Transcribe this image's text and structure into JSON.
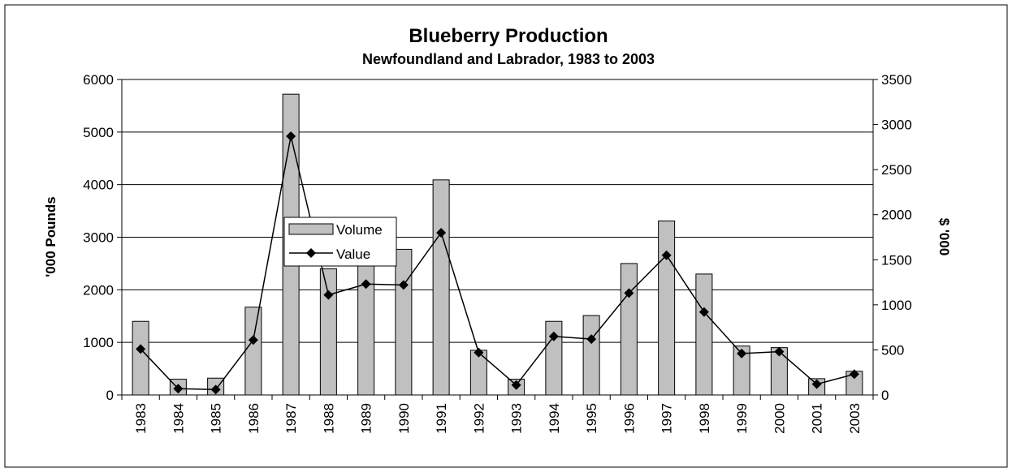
{
  "chart_data": {
    "type": "bar",
    "title": "Blueberry Production",
    "subtitle": "Newfoundland and Labrador, 1983 to 2003",
    "categories": [
      "1983",
      "1984",
      "1985",
      "1986",
      "1987",
      "1988",
      "1989",
      "1990",
      "1991",
      "1992",
      "1993",
      "1994",
      "1995",
      "1996",
      "1997",
      "1998",
      "1999",
      "2000",
      "2001",
      "2003"
    ],
    "series": [
      {
        "name": "Volume",
        "type": "bar",
        "axis": "left",
        "color": "#c0c0c0",
        "values": [
          1400,
          300,
          320,
          1670,
          5720,
          2400,
          2500,
          2770,
          4090,
          850,
          300,
          1400,
          1510,
          2500,
          3310,
          2300,
          930,
          900,
          310,
          450
        ]
      },
      {
        "name": "Value",
        "type": "line",
        "axis": "right",
        "color": "#000000",
        "marker": "diamond",
        "values": [
          510,
          70,
          60,
          610,
          2870,
          1110,
          1230,
          1220,
          1800,
          470,
          110,
          650,
          620,
          1130,
          1550,
          920,
          460,
          480,
          120,
          230
        ]
      }
    ],
    "ylabel": "'000 Pounds",
    "y2label": "$ '000",
    "ylim": [
      0,
      6000
    ],
    "y2lim": [
      0,
      3500
    ],
    "yticks": [
      0,
      1000,
      2000,
      3000,
      4000,
      5000,
      6000
    ],
    "y2ticks": [
      0,
      500,
      1000,
      1500,
      2000,
      2500,
      3000,
      3500
    ],
    "grid": true,
    "legend_position": "left-center"
  }
}
